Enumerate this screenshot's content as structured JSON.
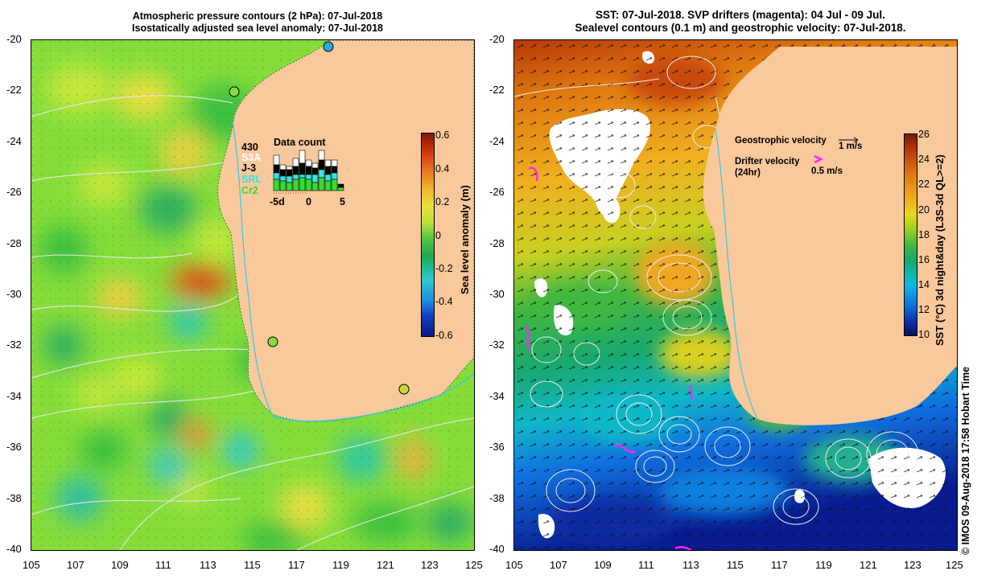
{
  "left_panel": {
    "title_line1": "Atmospheric pressure contours (2 hPa): 07-Jul-2018",
    "title_line2": "Isostatically adjusted sea level anomaly: 07-Jul-2018",
    "colorbar_label": "Sea level anomaly (m)",
    "colorbar_ticks": [
      "0.6",
      "0.4",
      "0.2",
      "0",
      "-0.2",
      "-0.4",
      "-0.6"
    ],
    "data_count": {
      "title": "Data count",
      "total": "430",
      "satellites": [
        {
          "name": "S3A",
          "color": "#ffffff"
        },
        {
          "name": "J-3",
          "color": "#000000"
        },
        {
          "name": "SRL",
          "color": "#33e6e6"
        },
        {
          "name": "Cr2",
          "color": "#33dd33"
        }
      ],
      "x_ticks": [
        "-5d",
        "0",
        "5"
      ]
    }
  },
  "right_panel": {
    "title_line1": "SST: 07-Jul-2018. SVP drifters (magenta): 04 Jul - 09 Jul.",
    "title_line2": "Sealevel contours (0.1 m) and geostrophic velocity: 07-Jul-2018.",
    "colorbar_label": "SST (°C) 3d night&day (L3S-3d QL>=2)",
    "colorbar_ticks": [
      "26",
      "24",
      "22",
      "20",
      "18",
      "16",
      "14",
      "12",
      "10"
    ],
    "geostrophic_label": "Geostrophic velocity",
    "geostrophic_scale": "1 m/s",
    "drifter_label_line1": "Drifter velocity",
    "drifter_label_line2": "(24hr)",
    "drifter_scale": "0.5 m/s",
    "credit": "© IMOS 09-Aug-2018 17:58 Hobart Time"
  },
  "axes": {
    "lat_labels": [
      "-20",
      "-22",
      "-24",
      "-26",
      "-28",
      "-30",
      "-32",
      "-34",
      "-36",
      "-38",
      "-40"
    ],
    "lon_labels": [
      "105",
      "107",
      "109",
      "111",
      "113",
      "115",
      "117",
      "119",
      "121",
      "123",
      "125"
    ]
  },
  "colors": {
    "land": "#f9c89b",
    "coast_line": "#35c8e8",
    "drifter": "#ff22ff"
  }
}
